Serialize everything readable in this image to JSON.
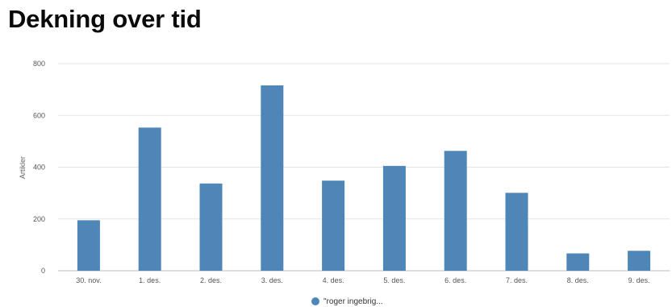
{
  "page": {
    "title": "Dekning over tid"
  },
  "chart_data": {
    "type": "bar",
    "title": "",
    "xlabel": "",
    "ylabel": "Artikler",
    "ylim": [
      0,
      800
    ],
    "yticks": [
      0,
      200,
      400,
      600,
      800
    ],
    "grid": true,
    "legend_position": "bottom",
    "categories": [
      "30. nov.",
      "1. des.",
      "2. des.",
      "3. des.",
      "4. des.",
      "5. des.",
      "6. des.",
      "7. des.",
      "8. des.",
      "9. des."
    ],
    "series": [
      {
        "name": "\"roger ingebrig...",
        "color": "#4f86b8",
        "values": [
          195,
          553,
          337,
          716,
          348,
          405,
          463,
          301,
          67,
          77
        ]
      }
    ]
  }
}
